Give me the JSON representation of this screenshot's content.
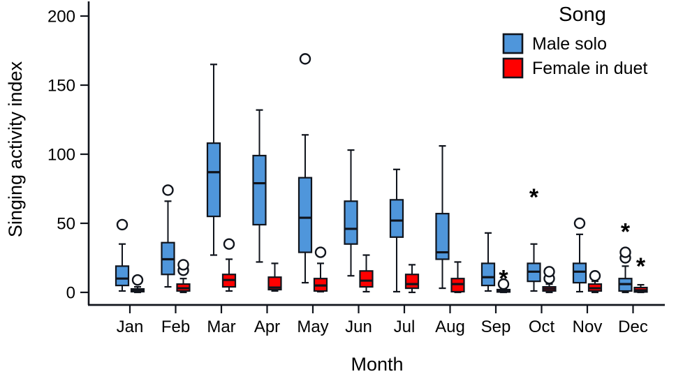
{
  "chart_data": {
    "type": "boxplot",
    "title": "",
    "xlabel": "Month",
    "ylabel": "Singing activity index",
    "ylim": [
      0,
      200
    ],
    "yticks": [
      0,
      50,
      100,
      150,
      200
    ],
    "grid": false,
    "categories": [
      "Jan",
      "Feb",
      "Mar",
      "Apr",
      "May",
      "Jun",
      "Jul",
      "Aug",
      "Sep",
      "Oct",
      "Nov",
      "Dec"
    ],
    "legend": {
      "title": "Song",
      "position": "top-right",
      "entries": [
        {
          "label": "Male solo",
          "color": "#4F96DB"
        },
        {
          "label": "Female in duet",
          "color": "#FF0000"
        }
      ]
    },
    "series": [
      {
        "name": "Male solo",
        "color": "#4F96DB",
        "boxes": [
          {
            "whislo": 1,
            "q1": 5,
            "med": 10,
            "q3": 19,
            "whishi": 35,
            "outliers": [
              49
            ],
            "extremes": []
          },
          {
            "whislo": 4,
            "q1": 13,
            "med": 24,
            "q3": 36,
            "whishi": 66,
            "outliers": [
              74
            ],
            "extremes": []
          },
          {
            "whislo": 27,
            "q1": 55,
            "med": 87,
            "q3": 108,
            "whishi": 165,
            "outliers": [],
            "extremes": []
          },
          {
            "whislo": 22,
            "q1": 49,
            "med": 79,
            "q3": 99,
            "whishi": 132,
            "outliers": [],
            "extremes": []
          },
          {
            "whislo": 7,
            "q1": 29,
            "med": 54,
            "q3": 83,
            "whishi": 114,
            "outliers": [
              169
            ],
            "extremes": []
          },
          {
            "whislo": 12,
            "q1": 35,
            "med": 46,
            "q3": 66,
            "whishi": 103,
            "outliers": [],
            "extremes": []
          },
          {
            "whislo": 0.5,
            "q1": 40,
            "med": 52,
            "q3": 67,
            "whishi": 89,
            "outliers": [],
            "extremes": []
          },
          {
            "whislo": 3,
            "q1": 24,
            "med": 29,
            "q3": 57,
            "whishi": 106,
            "outliers": [],
            "extremes": []
          },
          {
            "whislo": 1,
            "q1": 5,
            "med": 11,
            "q3": 21,
            "whishi": 43,
            "outliers": [],
            "extremes": []
          },
          {
            "whislo": 1,
            "q1": 8,
            "med": 15,
            "q3": 21,
            "whishi": 35,
            "outliers": [],
            "extremes": [
              70
            ]
          },
          {
            "whislo": 0.5,
            "q1": 7,
            "med": 15,
            "q3": 21,
            "whishi": 42,
            "outliers": [
              50
            ],
            "extremes": []
          },
          {
            "whislo": 0,
            "q1": 1,
            "med": 6,
            "q3": 10,
            "whishi": 19,
            "outliers": [
              25,
              29
            ],
            "extremes": [
              45
            ]
          }
        ]
      },
      {
        "name": "Female in duet",
        "color": "#FF0000",
        "boxes": [
          {
            "whislo": 0,
            "q1": 0.5,
            "med": 1.5,
            "q3": 2.5,
            "whishi": 4,
            "outliers": [
              9
            ],
            "extremes": []
          },
          {
            "whislo": 0,
            "q1": 1,
            "med": 3,
            "q3": 6,
            "whishi": 10,
            "outliers": [
              16,
              20
            ],
            "extremes": []
          },
          {
            "whislo": 1,
            "q1": 4,
            "med": 9,
            "q3": 13,
            "whishi": 24,
            "outliers": [
              35
            ],
            "extremes": []
          },
          {
            "whislo": 1,
            "q1": 2,
            "med": 3.5,
            "q3": 11,
            "whishi": 21,
            "outliers": [],
            "extremes": []
          },
          {
            "whislo": 0.5,
            "q1": 1,
            "med": 5,
            "q3": 10,
            "whishi": 21,
            "outliers": [
              29
            ],
            "extremes": []
          },
          {
            "whislo": 0.5,
            "q1": 4,
            "med": 8.5,
            "q3": 15.5,
            "whishi": 27,
            "outliers": [],
            "extremes": []
          },
          {
            "whislo": 0,
            "q1": 3,
            "med": 6,
            "q3": 13,
            "whishi": 20,
            "outliers": [],
            "extremes": []
          },
          {
            "whislo": 0,
            "q1": 0.5,
            "med": 6,
            "q3": 10,
            "whishi": 22,
            "outliers": [],
            "extremes": []
          },
          {
            "whislo": 0,
            "q1": 0.3,
            "med": 1,
            "q3": 2,
            "whishi": 3,
            "outliers": [
              6
            ],
            "extremes": [
              11
            ]
          },
          {
            "whislo": 0,
            "q1": 1,
            "med": 2.5,
            "q3": 4,
            "whishi": 6,
            "outliers": [
              10,
              15
            ],
            "extremes": []
          },
          {
            "whislo": 0,
            "q1": 1,
            "med": 3,
            "q3": 6,
            "whishi": 8,
            "outliers": [
              12
            ],
            "extremes": []
          },
          {
            "whislo": 0,
            "q1": 0.3,
            "med": 1.5,
            "q3": 3.5,
            "whishi": 5.5,
            "outliers": [],
            "extremes": [
              20
            ]
          }
        ]
      }
    ]
  }
}
